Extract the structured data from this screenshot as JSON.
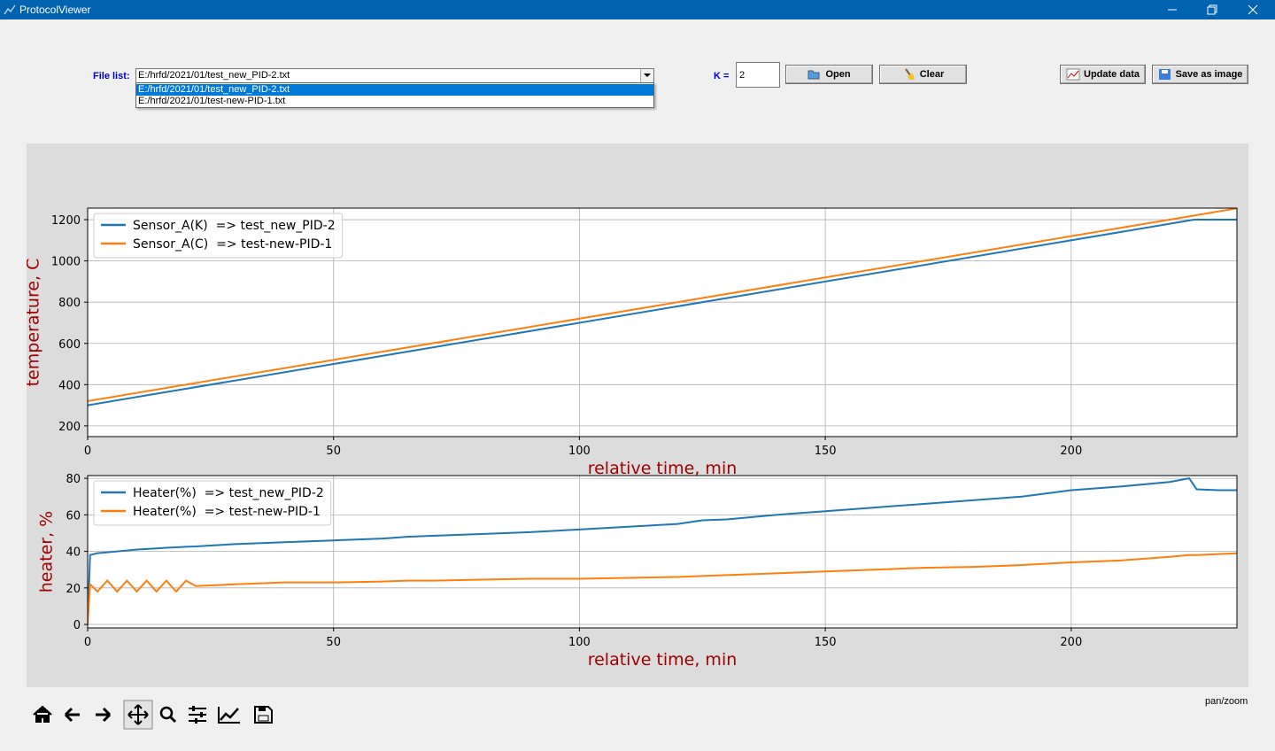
{
  "window": {
    "title": "ProtocolViewer"
  },
  "controls": {
    "file_list_label": "File list:",
    "file_selected": "E:/hrfd/2021/01/test_new_PID-2.txt",
    "file_options": [
      "E:/hrfd/2021/01/test_new_PID-2.txt",
      "E:/hrfd/2021/01/test-new-PID-1.txt"
    ],
    "k_label": "K =",
    "k_value": "2",
    "buttons": [
      "Open",
      "Clear",
      "Update data",
      "Save as image"
    ]
  },
  "status": "pan/zoom",
  "chart_data": [
    {
      "type": "line",
      "xlabel": "relative time, min",
      "ylabel": "temperature, C",
      "x": [
        0,
        225,
        233.7
      ],
      "series": [
        {
          "name": "Sensor_A(K)  => test_new_PID-2",
          "color": "#1f77b4",
          "values": [
            300,
            1200,
            1200
          ]
        },
        {
          "name": "Sensor_A(C)  => test-new-PID-1",
          "color": "#ff7f0e",
          "values": [
            320,
            1220,
            1255
          ]
        }
      ],
      "xlim": [
        0,
        233.7
      ],
      "ylim": [
        148,
        1256
      ],
      "xticks": [
        0,
        50,
        100,
        150,
        200
      ],
      "yticks": [
        200,
        400,
        600,
        800,
        1000,
        1200
      ],
      "grid": true,
      "legend": "upper left"
    },
    {
      "type": "line",
      "xlabel": "relative time, min",
      "ylabel": "heater, %",
      "x": [
        0,
        0.5,
        2,
        4,
        6,
        8,
        10,
        12,
        14,
        16,
        18,
        20,
        22,
        30,
        40,
        50,
        60,
        65,
        70,
        80,
        90,
        100,
        110,
        120,
        125,
        130,
        140,
        150,
        160,
        170,
        180,
        190,
        200,
        210,
        220,
        224,
        225.5,
        230,
        234
      ],
      "series": [
        {
          "name": "Heater(%)  => test_new_PID-2",
          "color": "#1f77b4",
          "values": [
            0,
            38,
            39,
            39.5,
            40,
            40.5,
            41,
            41.3,
            41.6,
            42,
            42.2,
            42.5,
            42.7,
            44,
            45,
            46,
            47,
            48,
            48.5,
            49.5,
            50.5,
            52,
            53.5,
            55,
            57,
            57.5,
            60,
            62,
            64,
            66,
            68,
            70,
            73.5,
            75.5,
            78,
            80,
            74,
            73.5,
            73.5
          ]
        },
        {
          "name": "Heater(%)  => test-new-PID-1",
          "color": "#ff7f0e",
          "values": [
            0,
            22,
            18,
            24,
            18,
            24,
            18,
            24,
            18,
            24,
            18,
            24,
            21,
            22,
            23,
            23,
            23.5,
            24,
            24,
            24.5,
            25,
            25,
            25.5,
            26,
            26.5,
            27,
            28,
            29,
            30,
            31,
            31.5,
            32.5,
            34,
            35,
            37,
            38,
            38,
            38.5,
            39
          ]
        }
      ],
      "xlim": [
        0,
        233.7
      ],
      "ylim": [
        -1.9,
        81.5
      ],
      "xticks": [
        0,
        50,
        100,
        150,
        200
      ],
      "yticks": [
        0,
        20,
        40,
        60,
        80
      ],
      "grid": true,
      "legend": "upper left"
    }
  ]
}
